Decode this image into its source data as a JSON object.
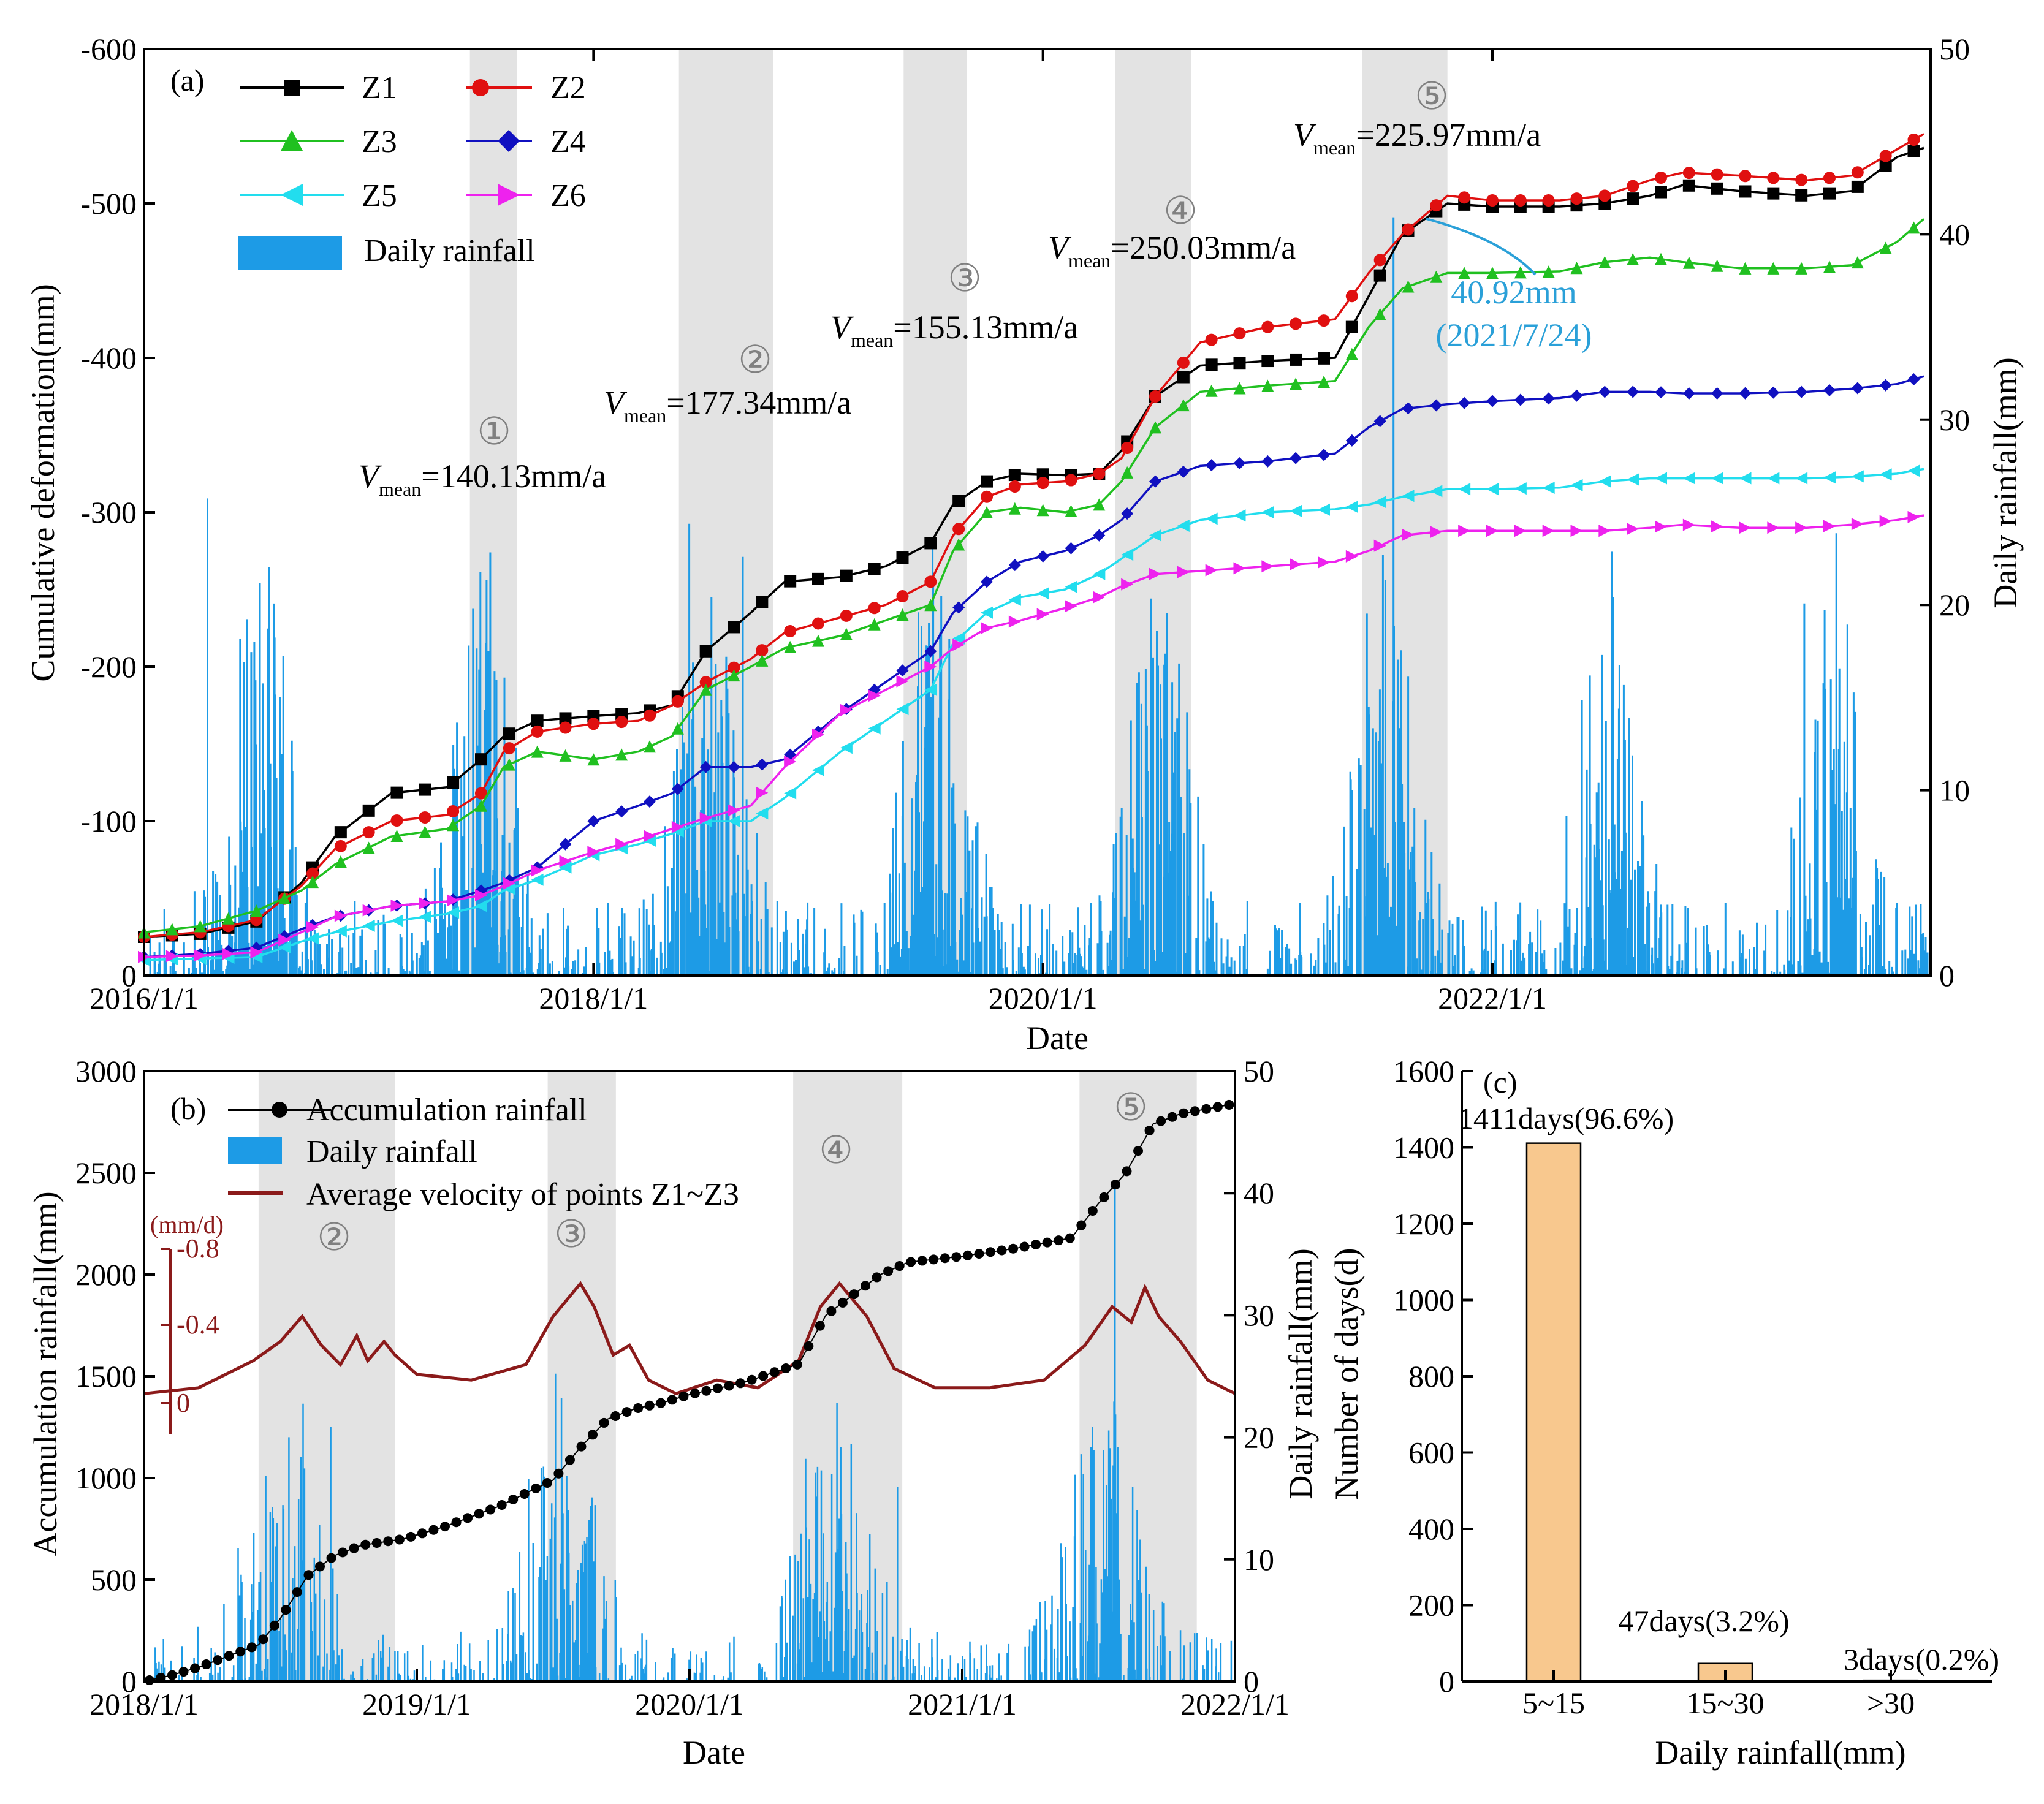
{
  "figure": {
    "colors": {
      "Z1": "#000000",
      "Z2": "#e01010",
      "Z3": "#20c020",
      "Z4": "#1010c0",
      "Z5": "#22ddee",
      "Z6": "#ee22ee",
      "rain": "#1d9be6",
      "velocity": "#8b1a1a",
      "accum": "#000000",
      "bar_c": "#f8c88e",
      "shade": "#e3e3e3",
      "annot_blue": "#2aa0d8"
    }
  },
  "chart_data": [
    {
      "id": "a",
      "type": "line",
      "panel_label": "(a)",
      "xlabel": "Date",
      "ylabel_left": "Cumulative deformation(mm)",
      "ylabel_right": "Daily rainfall(mm)",
      "x_range": [
        2016.0,
        2023.95
      ],
      "ylim_left": [
        0,
        -600
      ],
      "ylim_right": [
        0,
        50
      ],
      "x_ticks": [
        {
          "value": 2016.0,
          "label": "2016/1/1"
        },
        {
          "value": 2018.0,
          "label": "2018/1/1"
        },
        {
          "value": 2020.0,
          "label": "2020/1/1"
        },
        {
          "value": 2022.0,
          "label": "2022/1/1"
        }
      ],
      "y_ticks_left": [
        "-600",
        "-500",
        "-400",
        "-300",
        "-200",
        "-100",
        "0"
      ],
      "y_ticks_left_values": [
        -600,
        -500,
        -400,
        -300,
        -200,
        -100,
        0
      ],
      "y_ticks_right": [
        "50",
        "40",
        "30",
        "20",
        "10",
        "0"
      ],
      "y_ticks_right_values": [
        50,
        40,
        30,
        20,
        10,
        0
      ],
      "shaded_periods": [
        {
          "label": "①",
          "start": 2017.45,
          "end": 2017.66
        },
        {
          "label": "②",
          "start": 2018.38,
          "end": 2018.8
        },
        {
          "label": "③",
          "start": 2019.38,
          "end": 2019.66
        },
        {
          "label": "④",
          "start": 2020.32,
          "end": 2020.66
        },
        {
          "label": "⑤",
          "start": 2021.42,
          "end": 2021.8
        }
      ],
      "velocity_annotations": [
        {
          "sym": "V",
          "sub": "mean",
          "text": "=140.13mm/a"
        },
        {
          "sym": "V",
          "sub": "mean",
          "text": "=177.34mm/a"
        },
        {
          "sym": "V",
          "sub": "mean",
          "text": "=155.13mm/a"
        },
        {
          "sym": "V",
          "sub": "mean",
          "text": "=250.03mm/a"
        },
        {
          "sym": "V",
          "sub": "mean",
          "text": "=225.97mm/a"
        }
      ],
      "peak_annotation": {
        "value_text": "40.92mm",
        "date_text": "(2021/7/24)",
        "x": 2021.56,
        "y": 40.92
      },
      "legend": [
        {
          "name": "Z1",
          "marker": "square"
        },
        {
          "name": "Z2",
          "marker": "circle"
        },
        {
          "name": "Z3",
          "marker": "triangle-up"
        },
        {
          "name": "Z4",
          "marker": "diamond"
        },
        {
          "name": "Z5",
          "marker": "triangle-left"
        },
        {
          "name": "Z6",
          "marker": "triangle-right"
        },
        {
          "name": "Daily rainfall",
          "marker": "bar"
        }
      ],
      "series": [
        {
          "name": "Z1",
          "x": [
            2016.0,
            2016.25,
            2016.5,
            2016.7,
            2016.85,
            2017.1,
            2017.35,
            2017.5,
            2017.6,
            2017.75,
            2018.0,
            2018.2,
            2018.35,
            2018.5,
            2018.7,
            2018.85,
            2019.1,
            2019.3,
            2019.5,
            2019.6,
            2019.75,
            2019.9,
            2020.1,
            2020.25,
            2020.35,
            2020.5,
            2020.7,
            2021.0,
            2021.3,
            2021.45,
            2021.6,
            2021.8,
            2022.0,
            2022.3,
            2022.5,
            2022.7,
            2022.85,
            2023.1,
            2023.4,
            2023.6,
            2023.8,
            2023.92
          ],
          "y": [
            -25,
            -27,
            -35,
            -60,
            -90,
            -118,
            -122,
            -140,
            -155,
            -165,
            -168,
            -170,
            -175,
            -210,
            -235,
            -255,
            -258,
            -265,
            -280,
            -305,
            -320,
            -325,
            -324,
            -325,
            -340,
            -375,
            -395,
            -398,
            -400,
            -440,
            -480,
            -500,
            -498,
            -498,
            -500,
            -505,
            -512,
            -508,
            -505,
            -508,
            -530,
            -536
          ]
        },
        {
          "name": "Z2",
          "x": [
            2016.0,
            2016.25,
            2016.5,
            2016.7,
            2016.85,
            2017.1,
            2017.35,
            2017.5,
            2017.6,
            2017.75,
            2018.0,
            2018.2,
            2018.35,
            2018.5,
            2018.7,
            2018.85,
            2019.1,
            2019.3,
            2019.5,
            2019.6,
            2019.75,
            2019.9,
            2020.1,
            2020.25,
            2020.35,
            2020.5,
            2020.7,
            2021.0,
            2021.3,
            2021.45,
            2021.6,
            2021.8,
            2022.0,
            2022.3,
            2022.5,
            2022.7,
            2022.85,
            2023.1,
            2023.4,
            2023.6,
            2023.8,
            2023.92
          ],
          "y": [
            -25,
            -28,
            -36,
            -58,
            -82,
            -100,
            -104,
            -118,
            -145,
            -158,
            -163,
            -165,
            -175,
            -190,
            -205,
            -222,
            -232,
            -240,
            -255,
            -285,
            -310,
            -318,
            -320,
            -325,
            -335,
            -375,
            -410,
            -420,
            -425,
            -455,
            -480,
            -505,
            -502,
            -502,
            -505,
            -515,
            -520,
            -518,
            -515,
            -518,
            -535,
            -545
          ]
        },
        {
          "name": "Z3",
          "x": [
            2016.0,
            2016.25,
            2016.5,
            2016.7,
            2016.85,
            2017.1,
            2017.35,
            2017.5,
            2017.6,
            2017.75,
            2018.0,
            2018.2,
            2018.35,
            2018.5,
            2018.7,
            2018.85,
            2019.1,
            2019.3,
            2019.5,
            2019.6,
            2019.75,
            2019.9,
            2020.1,
            2020.25,
            2020.35,
            2020.5,
            2020.7,
            2021.0,
            2021.3,
            2021.45,
            2021.6,
            2021.8,
            2022.0,
            2022.3,
            2022.5,
            2022.7,
            2022.85,
            2023.1,
            2023.4,
            2023.6,
            2023.8,
            2023.92
          ],
          "y": [
            -28,
            -32,
            -42,
            -55,
            -72,
            -90,
            -95,
            -110,
            -135,
            -145,
            -140,
            -145,
            -155,
            -185,
            -200,
            -212,
            -220,
            -230,
            -240,
            -275,
            -300,
            -303,
            -300,
            -305,
            -320,
            -355,
            -378,
            -382,
            -385,
            -420,
            -445,
            -455,
            -455,
            -456,
            -462,
            -465,
            -462,
            -458,
            -458,
            -460,
            -475,
            -490
          ]
        },
        {
          "name": "Z4",
          "x": [
            2016.0,
            2016.25,
            2016.5,
            2016.7,
            2016.85,
            2017.1,
            2017.35,
            2017.5,
            2017.6,
            2017.75,
            2018.0,
            2018.2,
            2018.35,
            2018.5,
            2018.7,
            2018.85,
            2019.1,
            2019.3,
            2019.5,
            2019.6,
            2019.75,
            2019.9,
            2020.1,
            2020.25,
            2020.35,
            2020.5,
            2020.7,
            2021.0,
            2021.3,
            2021.45,
            2021.6,
            2021.8,
            2022.0,
            2022.3,
            2022.5,
            2022.7,
            2022.85,
            2023.1,
            2023.4,
            2023.6,
            2023.8,
            2023.92
          ],
          "y": [
            -12,
            -14,
            -18,
            -30,
            -38,
            -45,
            -48,
            -55,
            -60,
            -70,
            -100,
            -110,
            -118,
            -135,
            -135,
            -140,
            -170,
            -190,
            -210,
            -235,
            -255,
            -268,
            -275,
            -285,
            -295,
            -320,
            -330,
            -333,
            -338,
            -355,
            -367,
            -370,
            -372,
            -374,
            -378,
            -378,
            -377,
            -377,
            -378,
            -380,
            -383,
            -388
          ]
        },
        {
          "name": "Z5",
          "x": [
            2016.0,
            2016.25,
            2016.5,
            2016.7,
            2016.85,
            2017.1,
            2017.35,
            2017.5,
            2017.6,
            2017.75,
            2018.0,
            2018.2,
            2018.35,
            2018.5,
            2018.7,
            2018.85,
            2019.1,
            2019.3,
            2019.5,
            2019.6,
            2019.75,
            2019.9,
            2020.1,
            2020.25,
            2020.35,
            2020.5,
            2020.7,
            2021.0,
            2021.3,
            2021.45,
            2021.6,
            2021.8,
            2022.0,
            2022.3,
            2022.5,
            2022.7,
            2022.85,
            2023.1,
            2023.4,
            2023.6,
            2023.8,
            2023.92
          ],
          "y": [
            -10,
            -11,
            -12,
            -22,
            -28,
            -35,
            -40,
            -45,
            -55,
            -62,
            -78,
            -85,
            -92,
            -100,
            -100,
            -115,
            -145,
            -165,
            -185,
            -215,
            -235,
            -245,
            -250,
            -260,
            -270,
            -285,
            -295,
            -300,
            -302,
            -305,
            -310,
            -315,
            -315,
            -316,
            -320,
            -322,
            -322,
            -322,
            -322,
            -323,
            -325,
            -328
          ]
        },
        {
          "name": "Z6",
          "x": [
            2016.0,
            2016.25,
            2016.5,
            2016.7,
            2016.85,
            2017.1,
            2017.35,
            2017.5,
            2017.6,
            2017.75,
            2018.0,
            2018.2,
            2018.35,
            2018.5,
            2018.7,
            2018.85,
            2019.1,
            2019.3,
            2019.5,
            2019.6,
            2019.75,
            2019.9,
            2020.1,
            2020.25,
            2020.35,
            2020.5,
            2020.7,
            2021.0,
            2021.3,
            2021.45,
            2021.6,
            2021.8,
            2022.0,
            2022.3,
            2022.5,
            2022.7,
            2022.85,
            2023.1,
            2023.4,
            2023.6,
            2023.8,
            2023.92
          ],
          "y": [
            -12,
            -13,
            -15,
            -28,
            -38,
            -45,
            -48,
            -52,
            -58,
            -68,
            -80,
            -88,
            -95,
            -102,
            -110,
            -135,
            -170,
            -185,
            -200,
            -212,
            -225,
            -230,
            -238,
            -245,
            -252,
            -260,
            -262,
            -265,
            -268,
            -275,
            -285,
            -288,
            -288,
            -288,
            -288,
            -290,
            -292,
            -290,
            -290,
            -292,
            -295,
            -298
          ]
        }
      ]
    },
    {
      "id": "b",
      "type": "line",
      "panel_label": "(b)",
      "xlabel": "Date",
      "ylabel_left": "Accumulation rainfall(mm)",
      "ylabel_right": "Daily rainfall(mm)",
      "x_range": [
        2018.0,
        2022.0
      ],
      "ylim_left": [
        0,
        3000
      ],
      "ylim_right": [
        0,
        50
      ],
      "x_ticks": [
        {
          "value": 2018.0,
          "label": "2018/1/1"
        },
        {
          "value": 2019.0,
          "label": "2019/1/1"
        },
        {
          "value": 2020.0,
          "label": "2020/1/1"
        },
        {
          "value": 2021.0,
          "label": "2021/1/1"
        },
        {
          "value": 2022.0,
          "label": "2022/1/1"
        }
      ],
      "y_ticks_left": [
        "3000",
        "2500",
        "2000",
        "1500",
        "1000",
        "500",
        "0"
      ],
      "y_ticks_left_values": [
        3000,
        2500,
        2000,
        1500,
        1000,
        500,
        0
      ],
      "y_ticks_right": [
        "50",
        "40",
        "30",
        "20",
        "10",
        "0"
      ],
      "y_ticks_right_values": [
        50,
        40,
        30,
        20,
        10,
        0
      ],
      "inset_axis": {
        "unit": "(mm/d)",
        "ticks": [
          "-0.8",
          "-0.4",
          "0"
        ],
        "tick_values": [
          -0.8,
          -0.4,
          0
        ]
      },
      "shaded_periods": [
        {
          "label": "②",
          "start": 2018.42,
          "end": 2018.92
        },
        {
          "label": "③",
          "start": 2019.48,
          "end": 2019.73
        },
        {
          "label": "④",
          "start": 2020.38,
          "end": 2020.78
        },
        {
          "label": "⑤",
          "start": 2021.43,
          "end": 2021.86
        }
      ],
      "legend": [
        {
          "name": "Accumulation  rainfall",
          "marker": "circle-line"
        },
        {
          "name": "Daily rainfall",
          "marker": "bar"
        },
        {
          "name": "Average velocity of  points Z1~Z3",
          "marker": "line"
        }
      ],
      "accumulation_rainfall": {
        "x": [
          2018.0,
          2018.1,
          2018.2,
          2018.3,
          2018.42,
          2018.5,
          2018.6,
          2018.7,
          2018.8,
          2018.95,
          2019.1,
          2019.3,
          2019.5,
          2019.6,
          2019.7,
          2019.8,
          2019.9,
          2020.0,
          2020.2,
          2020.4,
          2020.5,
          2020.6,
          2020.7,
          2020.8,
          2021.0,
          2021.2,
          2021.4,
          2021.5,
          2021.6,
          2021.7,
          2021.8,
          2022.0
        ],
        "y": [
          0,
          30,
          70,
          120,
          180,
          310,
          520,
          620,
          670,
          700,
          760,
          860,
          990,
          1150,
          1290,
          1340,
          1370,
          1410,
          1470,
          1560,
          1800,
          1900,
          2000,
          2060,
          2090,
          2130,
          2180,
          2350,
          2500,
          2740,
          2790,
          2840
        ]
      },
      "average_velocity_mm_per_d": {
        "x": [
          2018.0,
          2018.2,
          2018.4,
          2018.5,
          2018.58,
          2018.65,
          2018.72,
          2018.78,
          2018.82,
          2018.88,
          2018.92,
          2019.0,
          2019.2,
          2019.4,
          2019.5,
          2019.6,
          2019.65,
          2019.72,
          2019.78,
          2019.85,
          2019.95,
          2020.1,
          2020.25,
          2020.4,
          2020.48,
          2020.55,
          2020.65,
          2020.75,
          2020.9,
          2021.1,
          2021.3,
          2021.45,
          2021.55,
          2021.62,
          2021.67,
          2021.72,
          2021.8,
          2021.9,
          2022.0
        ],
        "y": [
          -0.05,
          -0.08,
          -0.22,
          -0.32,
          -0.45,
          -0.3,
          -0.2,
          -0.35,
          -0.22,
          -0.32,
          -0.25,
          -0.15,
          -0.12,
          -0.2,
          -0.45,
          -0.62,
          -0.5,
          -0.25,
          -0.3,
          -0.12,
          -0.05,
          -0.12,
          -0.08,
          -0.22,
          -0.5,
          -0.62,
          -0.45,
          -0.18,
          -0.08,
          -0.08,
          -0.12,
          -0.3,
          -0.5,
          -0.42,
          -0.6,
          -0.45,
          -0.32,
          -0.12,
          -0.05
        ]
      }
    },
    {
      "id": "c",
      "type": "bar",
      "panel_label": "(c)",
      "xlabel": "Daily rainfall(mm)",
      "ylabel": "Number of days(d)",
      "ylim": [
        0,
        1600
      ],
      "y_ticks": [
        "1600",
        "1400",
        "1200",
        "1000",
        "800",
        "600",
        "400",
        "200",
        "0"
      ],
      "y_tick_values": [
        1600,
        1400,
        1200,
        1000,
        800,
        600,
        400,
        200,
        0
      ],
      "categories": [
        "5~15",
        "15~30",
        ">30"
      ],
      "values": [
        1411,
        47,
        3
      ],
      "bar_labels": [
        "1411days(96.6%)",
        "47days(3.2%)",
        "3days(0.2%)"
      ]
    }
  ]
}
